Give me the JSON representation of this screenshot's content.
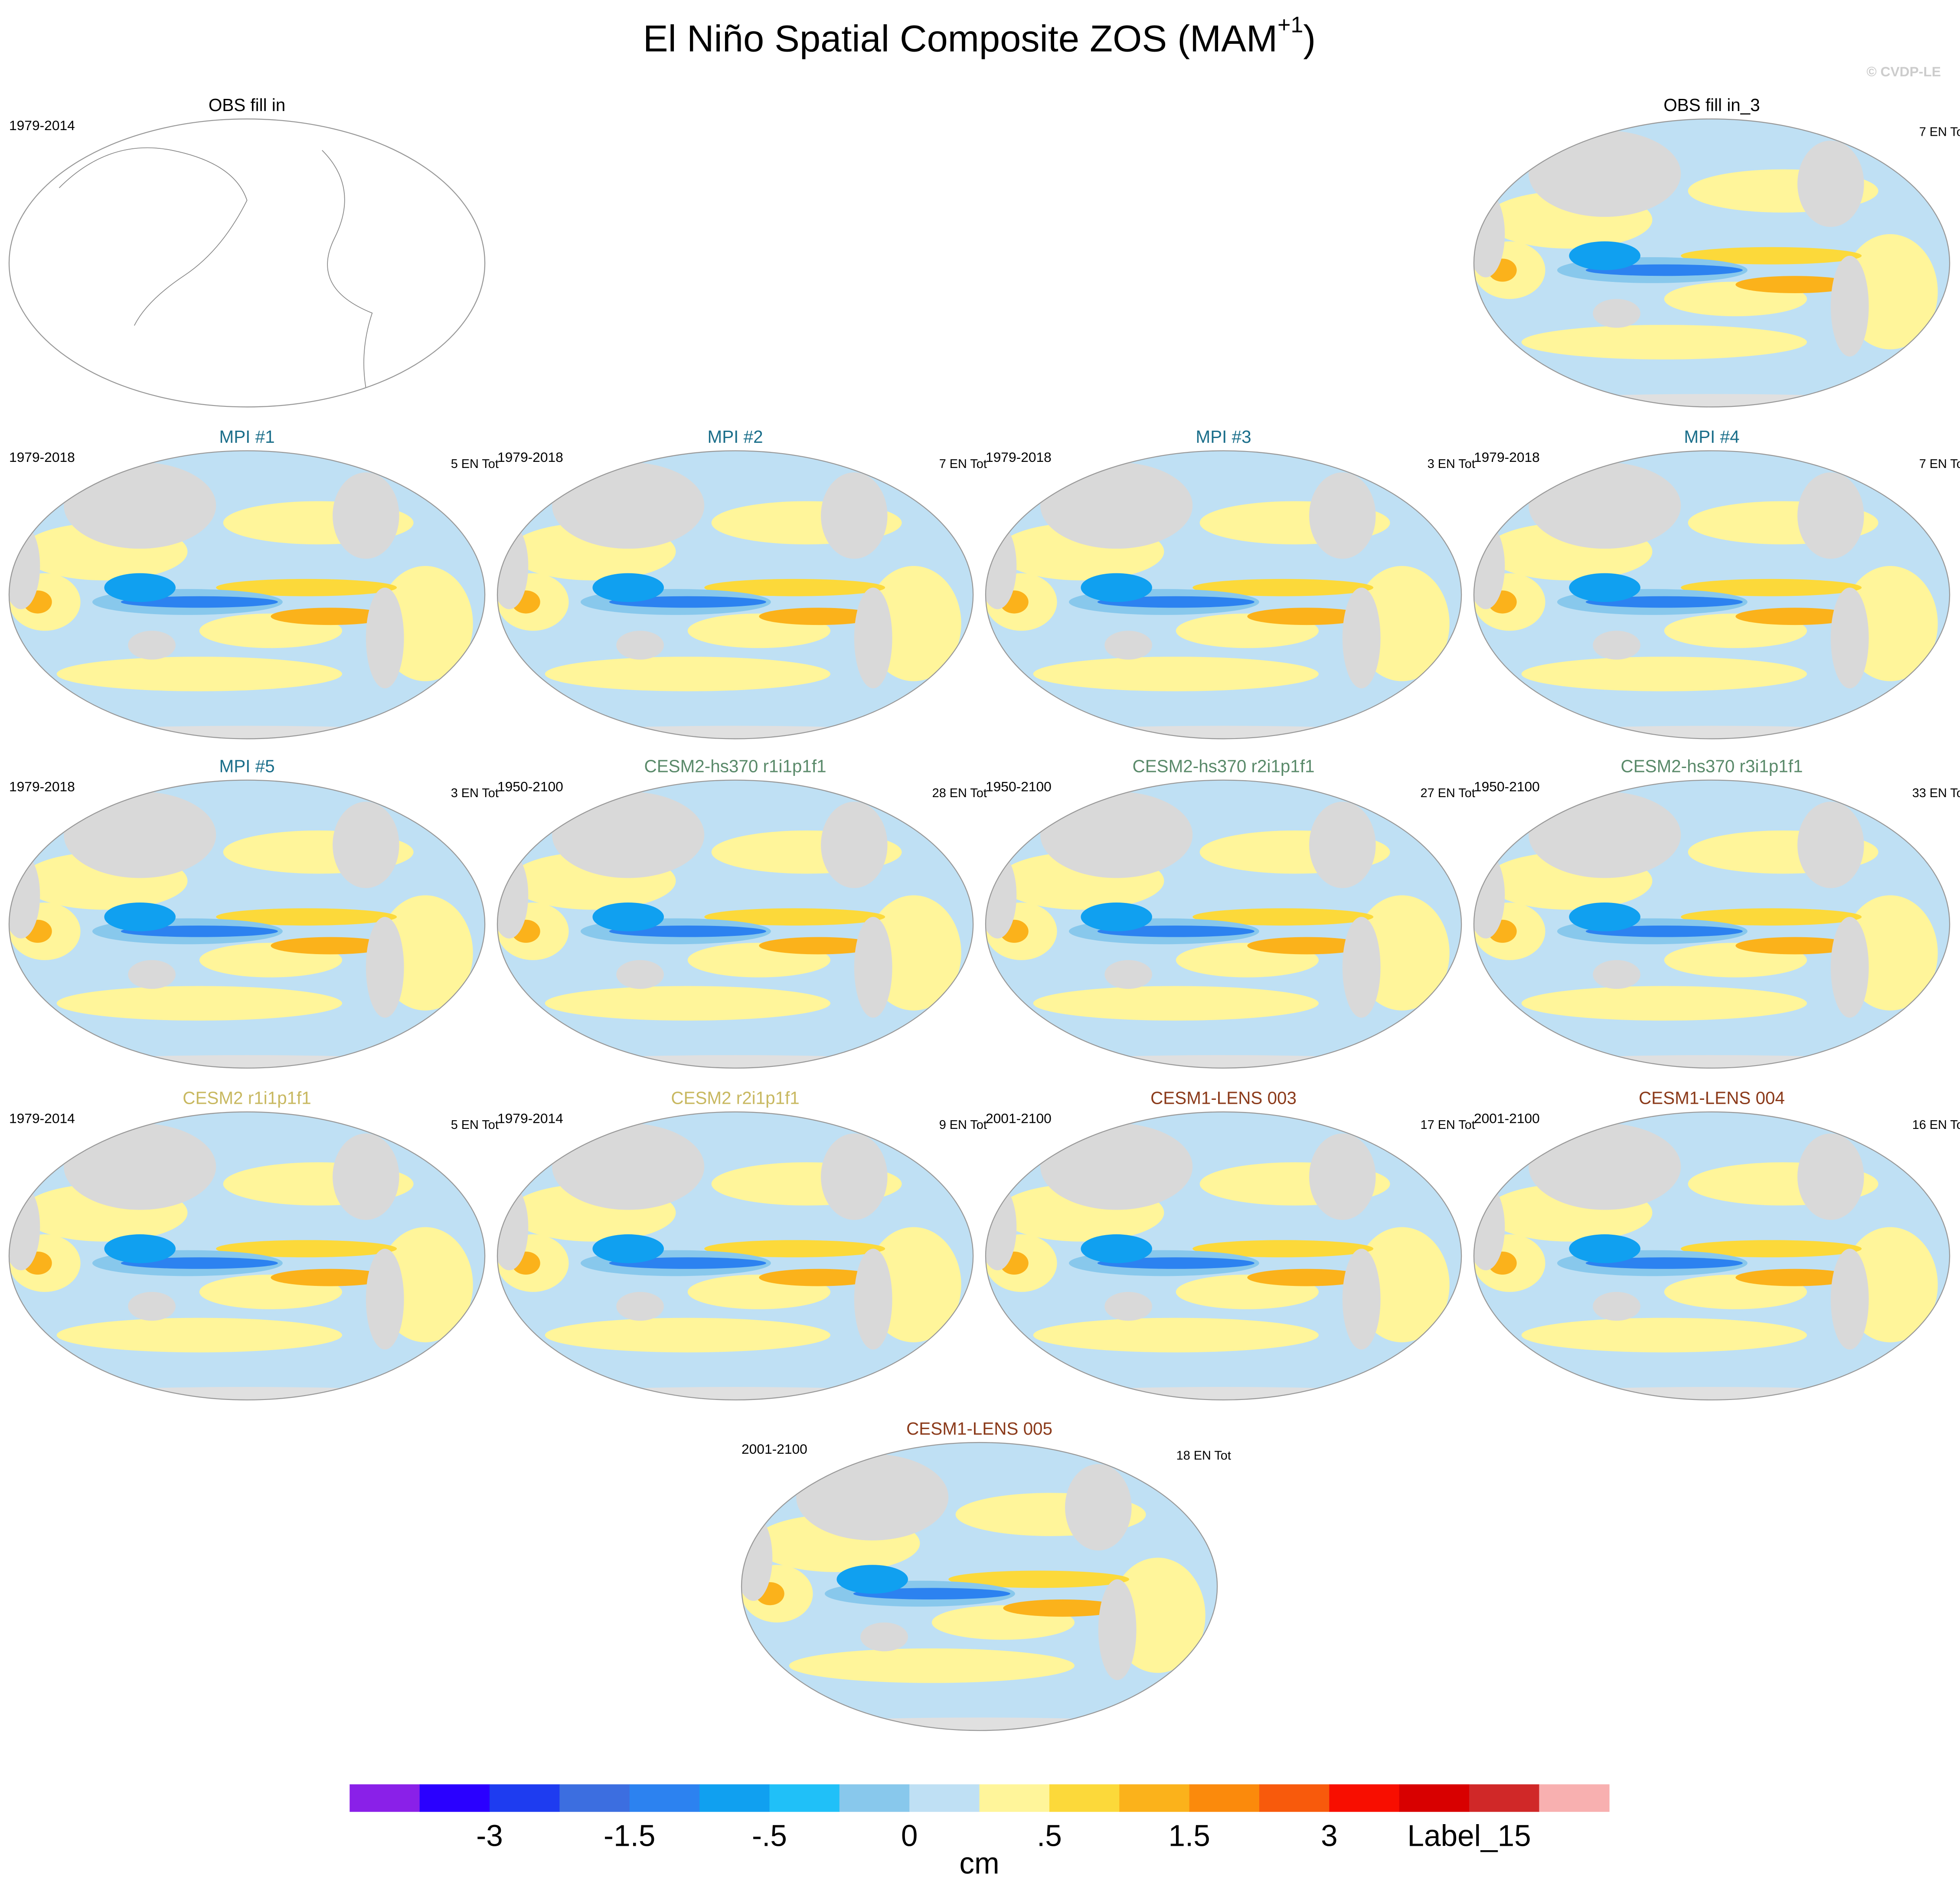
{
  "figure": {
    "title": {
      "main": "El Niño Spatial Composite ZOS (MAM",
      "sup": "+1",
      "close": ")"
    },
    "watermark": "© CVDP-LE",
    "panels": [
      {
        "title": "OBS fill in",
        "left": "1979-2014",
        "title_color": "#000000",
        "filled": false
      },
      {
        "title": "OBS fill in_3",
        "right": "7 EN To",
        "title_color": "#000000",
        "filled": true
      },
      {
        "title": "MPI #1",
        "left": "1979-2018",
        "right": "5 EN Tot",
        "title_color": "#1a6e8a",
        "filled": true
      },
      {
        "title": "MPI #2",
        "left": "1979-2018",
        "right": "7 EN Tot",
        "title_color": "#1a6e8a",
        "filled": true
      },
      {
        "title": "MPI #3",
        "left": "1979-2018",
        "right": "3 EN Tot",
        "title_color": "#1a6e8a",
        "filled": true
      },
      {
        "title": "MPI #4",
        "left": "1979-2018",
        "right": "7 EN To",
        "title_color": "#1a6e8a",
        "filled": true
      },
      {
        "title": "MPI #5",
        "left": "1979-2018",
        "right": "3 EN Tot",
        "title_color": "#1a6e8a",
        "filled": true
      },
      {
        "title": "CESM2-hs370 r1i1p1f1",
        "left": "1950-2100",
        "right": "28 EN Tot",
        "title_color": "#5a8a6a",
        "filled": true
      },
      {
        "title": "CESM2-hs370 r2i1p1f1",
        "left": "1950-2100",
        "right": "27 EN Tot",
        "title_color": "#5a8a6a",
        "filled": true
      },
      {
        "title": "CESM2-hs370 r3i1p1f1",
        "left": "1950-2100",
        "right": "33 EN To",
        "title_color": "#5a8a6a",
        "filled": true
      },
      {
        "title": "CESM2 r1i1p1f1",
        "left": "1979-2014",
        "right": "5 EN Tot",
        "title_color": "#c8b860",
        "filled": true
      },
      {
        "title": "CESM2 r2i1p1f1",
        "left": "1979-2014",
        "right": "9 EN Tot",
        "title_color": "#c8b860",
        "filled": true
      },
      {
        "title": "CESM1-LENS 003",
        "left": "2001-2100",
        "right": "17 EN Tot",
        "title_color": "#8b3a1a",
        "filled": true
      },
      {
        "title": "CESM1-LENS 004",
        "left": "2001-2100",
        "right": "16 EN To",
        "title_color": "#8b3a1a",
        "filled": true
      },
      {
        "title": "CESM1-LENS 005",
        "left": "2001-2100",
        "right": "18 EN Tot",
        "title_color": "#8b3a1a",
        "filled": true
      }
    ],
    "colorbar": {
      "colors": [
        "#8a20e8",
        "#2a00ff",
        "#1e3cf0",
        "#3c6ee0",
        "#2c82f0",
        "#10a0f0",
        "#20c0f8",
        "#88c8ec",
        "#bfe0f4",
        "#fff59a",
        "#fcd93a",
        "#fbb21b",
        "#fb8a0c",
        "#f85a0c",
        "#f80e00",
        "#d80000",
        "#d02828",
        "#f8b0b0"
      ],
      "labels": [
        "-3",
        "-1.5",
        "-.5",
        "0",
        ".5",
        "1.5",
        "3",
        "Label_15"
      ],
      "unit": "cm"
    }
  }
}
